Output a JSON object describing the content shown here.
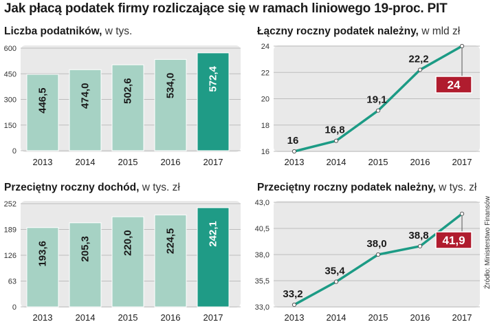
{
  "title": "Jak płacą podatek firmy rozliczające się w ramach liniowego 19-proc. PIT",
  "source": "Źródło: Ministerstwo Finansów",
  "colors": {
    "bar_light": "#a6d2c4",
    "bar_highlight": "#1f9b86",
    "line": "#1c9b85",
    "callout": "#b01c2e",
    "panel_bg": "#e9e9e9"
  },
  "chart_data": [
    {
      "type": "bar",
      "title": "Liczba podatników,",
      "unit": "w tys.",
      "categories": [
        "2013",
        "2014",
        "2015",
        "2016",
        "2017"
      ],
      "values": [
        446.5,
        474.0,
        502.6,
        534.0,
        572.4
      ],
      "labels": [
        "446,5",
        "474,0",
        "502,6",
        "534,0",
        "572,4"
      ],
      "highlight_index": 4,
      "ylim": [
        0,
        600
      ],
      "yticks": [
        "0",
        "150",
        "300",
        "450",
        "600"
      ]
    },
    {
      "type": "line",
      "title": "Łączny roczny podatek należny,",
      "unit": "w mld zł",
      "categories": [
        "2013",
        "2014",
        "2015",
        "2016",
        "2017"
      ],
      "values": [
        16,
        16.8,
        19.1,
        22.2,
        24
      ],
      "labels": [
        "16",
        "16,8",
        "19,1",
        "22,2",
        "24"
      ],
      "callout_index": 4,
      "ylim": [
        16,
        24
      ],
      "yticks": [
        "16",
        "18",
        "20",
        "22",
        "24"
      ]
    },
    {
      "type": "bar",
      "title": "Przeciętny roczny dochód,",
      "unit": "w tys. zł",
      "categories": [
        "2013",
        "2014",
        "2015",
        "2016",
        "2017"
      ],
      "values": [
        193.6,
        205.3,
        220.0,
        224.5,
        242.1
      ],
      "labels": [
        "193,6",
        "205,3",
        "220,0",
        "224,5",
        "242,1"
      ],
      "highlight_index": 4,
      "ylim": [
        0,
        252
      ],
      "yticks": [
        "0",
        "63",
        "126",
        "189",
        "252"
      ]
    },
    {
      "type": "line",
      "title": "Przeciętny roczny podatek należny,",
      "unit": "w tys. zł",
      "categories": [
        "2013",
        "2014",
        "2015",
        "2016",
        "2017"
      ],
      "values": [
        33.2,
        35.4,
        38.0,
        38.8,
        41.9
      ],
      "labels": [
        "33,2",
        "35,4",
        "38,0",
        "38,8",
        "41,9"
      ],
      "callout_index": 4,
      "ylim": [
        33,
        43
      ],
      "yticks": [
        "33,0",
        "35,5",
        "38,0",
        "40,5",
        "43,0"
      ]
    }
  ]
}
